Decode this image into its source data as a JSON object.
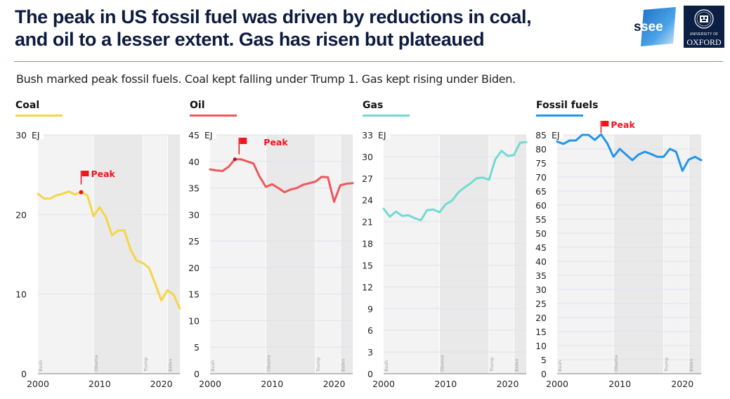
{
  "header": {
    "title_line1": "The peak in US fossil fuel was driven by reductions in coal,",
    "title_line2": "and oil to a lesser extent.  Gas has risen but plateaued",
    "logos": {
      "ssee": "ssee",
      "oxford_small": "UNIVERSITY OF",
      "oxford_big": "OXFORD"
    },
    "accent_color": "#3fa9e0",
    "title_color": "#0d1b3e"
  },
  "subtitle": "Bush marked peak fossil fuels.  Coal kept falling under Trump 1.  Gas kept rising under Biden.",
  "chart_data": [
    {
      "type": "line",
      "title": "Coal",
      "color": "#f5d547",
      "unit": "EJ",
      "xlabel": "",
      "ylabel": "EJ",
      "xlim": [
        2000,
        2023
      ],
      "ylim": [
        0,
        30
      ],
      "yticks": [
        0,
        10,
        20,
        30
      ],
      "xticks": [
        2000,
        2010,
        2020
      ],
      "x": [
        2000,
        2001,
        2002,
        2003,
        2004,
        2005,
        2006,
        2007,
        2008,
        2009,
        2010,
        2011,
        2012,
        2013,
        2014,
        2015,
        2016,
        2017,
        2018,
        2019,
        2020,
        2021,
        2022,
        2023
      ],
      "values": [
        22.6,
        22.0,
        22.0,
        22.4,
        22.6,
        22.9,
        22.5,
        22.8,
        22.4,
        19.8,
        20.9,
        19.7,
        17.4,
        18.0,
        18.0,
        15.6,
        14.2,
        13.9,
        13.3,
        11.3,
        9.2,
        10.5,
        9.9,
        8.2
      ],
      "peak": {
        "label": "Peak",
        "x": 2007,
        "y": 22.8
      },
      "grid": true
    },
    {
      "type": "line",
      "title": "Oil",
      "color": "#f0575a",
      "unit": "EJ",
      "xlabel": "",
      "ylabel": "EJ",
      "xlim": [
        2000,
        2023
      ],
      "ylim": [
        0,
        45
      ],
      "yticks": [
        0,
        5,
        10,
        15,
        20,
        25,
        30,
        35,
        40,
        45
      ],
      "xticks": [
        2000,
        2010,
        2020
      ],
      "x": [
        2000,
        2001,
        2002,
        2003,
        2004,
        2005,
        2006,
        2007,
        2008,
        2009,
        2010,
        2011,
        2012,
        2013,
        2014,
        2015,
        2016,
        2017,
        2018,
        2019,
        2020,
        2021,
        2022,
        2023
      ],
      "values": [
        38.5,
        38.3,
        38.2,
        39.0,
        40.4,
        40.4,
        40.0,
        39.6,
        37.1,
        35.2,
        35.7,
        35.0,
        34.2,
        34.7,
        35.0,
        35.6,
        35.9,
        36.2,
        37.1,
        37.0,
        32.4,
        35.5,
        35.8,
        35.9
      ],
      "peak": {
        "label": "Peak",
        "x": 2004,
        "y": 40.4
      },
      "grid": true
    },
    {
      "type": "line",
      "title": "Gas",
      "color": "#72dbd1",
      "unit": "EJ",
      "xlabel": "",
      "ylabel": "EJ",
      "xlim": [
        2000,
        2023
      ],
      "ylim": [
        0,
        33
      ],
      "yticks": [
        0,
        3,
        6,
        9,
        12,
        15,
        18,
        21,
        24,
        27,
        30,
        33
      ],
      "xticks": [
        2000,
        2010,
        2020
      ],
      "x": [
        2000,
        2001,
        2002,
        2003,
        2004,
        2005,
        2006,
        2007,
        2008,
        2009,
        2010,
        2011,
        2012,
        2013,
        2014,
        2015,
        2016,
        2017,
        2018,
        2019,
        2020,
        2021,
        2022,
        2023
      ],
      "values": [
        22.8,
        21.7,
        22.4,
        21.8,
        21.9,
        21.5,
        21.2,
        22.6,
        22.7,
        22.3,
        23.4,
        23.9,
        25.0,
        25.7,
        26.3,
        27.0,
        27.1,
        26.8,
        29.6,
        30.8,
        30.1,
        30.2,
        31.9,
        32.0
      ],
      "grid": true
    },
    {
      "type": "line",
      "title": "Fossil fuels",
      "color": "#2196e8",
      "unit": "EJ",
      "xlabel": "",
      "ylabel": "EJ",
      "xlim": [
        2000,
        2023
      ],
      "ylim": [
        0,
        85
      ],
      "yticks": [
        0,
        5,
        10,
        15,
        20,
        25,
        30,
        35,
        40,
        45,
        50,
        55,
        60,
        65,
        70,
        75,
        80,
        85
      ],
      "xticks": [
        2000,
        2010,
        2020
      ],
      "x": [
        2000,
        2001,
        2002,
        2003,
        2004,
        2005,
        2006,
        2007,
        2008,
        2009,
        2010,
        2011,
        2012,
        2013,
        2014,
        2015,
        2016,
        2017,
        2018,
        2019,
        2020,
        2021,
        2022,
        2023
      ],
      "values": [
        82.6,
        81.8,
        83.0,
        83.0,
        85.0,
        85.0,
        83.2,
        85.2,
        82.0,
        77.2,
        80.0,
        78.0,
        76.0,
        78.0,
        79.0,
        78.2,
        77.2,
        77.2,
        80.0,
        79.0,
        72.2,
        76.2,
        77.2,
        76.0
      ],
      "peak": {
        "label": "Peak",
        "x": 2007,
        "y": 85.2
      },
      "grid": true
    }
  ],
  "administrations": [
    {
      "label": "Bush",
      "start": 2000,
      "end": 2009,
      "shade": "#f3f3f4"
    },
    {
      "label": "Obama",
      "start": 2009,
      "end": 2017,
      "shade": "#e9e9ea"
    },
    {
      "label": "Trump",
      "start": 2017,
      "end": 2021,
      "shade": "#f3f3f4"
    },
    {
      "label": "Biden",
      "start": 2021,
      "end": 2023,
      "shade": "#e9e9ea"
    }
  ],
  "peak_color": "#f0141e"
}
